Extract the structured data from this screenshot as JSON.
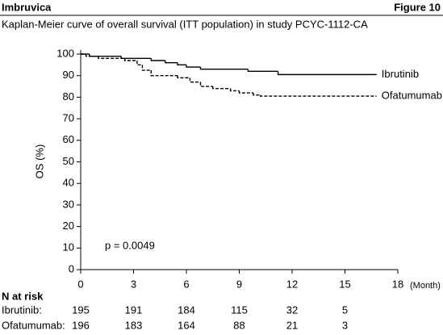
{
  "chart_data": {
    "type": "line",
    "step": "post",
    "title": "Imbruvica",
    "figure_label": "Figure 10",
    "subtitle": "Kaplan-Meier curve of overall survival (ITT population) in study PCYC-1112-CA",
    "y_label": "OS (%)",
    "x_label": "(Month)",
    "annotation": "p = 0.0049",
    "xlim": [
      0,
      18
    ],
    "ylim": [
      0,
      100
    ],
    "xticks": [
      0,
      3,
      6,
      9,
      12,
      15,
      18
    ],
    "yticks": [
      0,
      10,
      20,
      30,
      40,
      50,
      60,
      70,
      80,
      90,
      100
    ],
    "grid": false,
    "series": [
      {
        "name": "Ibrutinib",
        "color": "#000000",
        "dash": "solid",
        "x": [
          0,
          0.5,
          2.3,
          4.0,
          4.8,
          5.5,
          6.0,
          6.8,
          9.5,
          11.2,
          16.8
        ],
        "values": [
          100,
          99,
          98,
          97,
          96,
          95,
          94,
          93,
          92,
          90.5,
          90.5
        ]
      },
      {
        "name": "Ofatumumab",
        "color": "#000000",
        "dash": "dashed",
        "x": [
          0,
          0.3,
          1.0,
          2.5,
          3.2,
          3.5,
          4.0,
          5.5,
          6.2,
          6.8,
          7.5,
          8.5,
          9.0,
          9.8,
          10.2,
          16.8
        ],
        "values": [
          100,
          99,
          98,
          97,
          95,
          92.5,
          90,
          89,
          87,
          85,
          84,
          83,
          82,
          81,
          80.5,
          80.5
        ]
      }
    ],
    "risk_table": {
      "title": "N at risk",
      "rows": [
        {
          "label": "Ibrutinib:",
          "values": [
            195,
            191,
            184,
            115,
            32,
            5
          ]
        },
        {
          "label": "Ofatumumab:",
          "values": [
            196,
            183,
            164,
            88,
            21,
            3
          ]
        }
      ]
    }
  }
}
